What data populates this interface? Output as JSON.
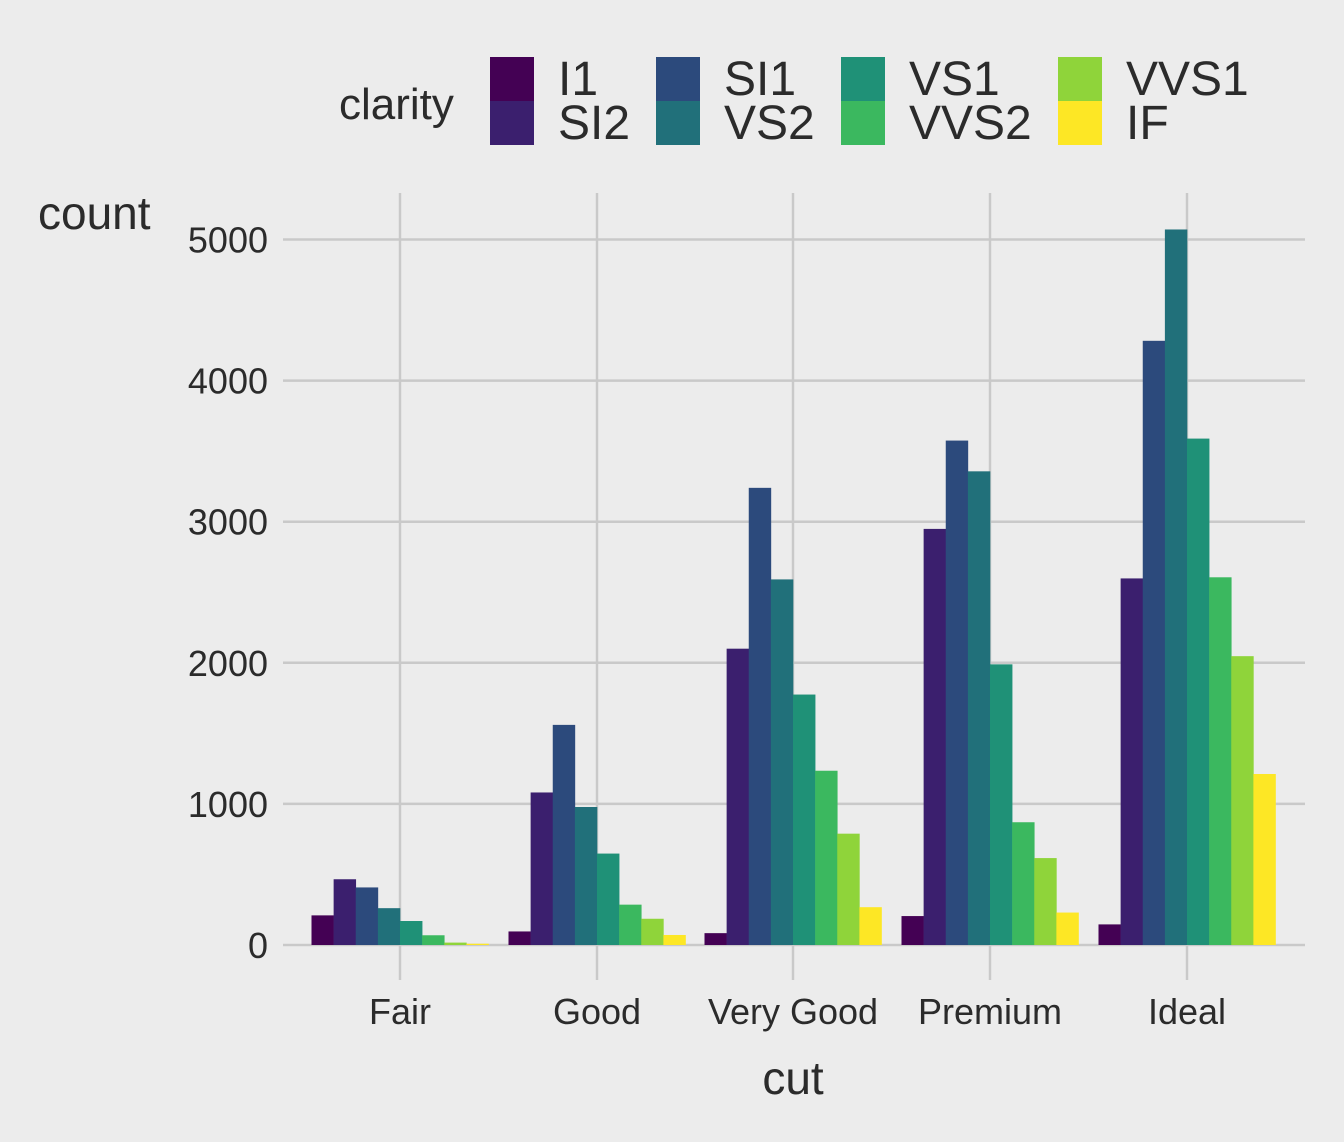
{
  "chart_data": {
    "type": "bar",
    "xlabel": "cut",
    "ylabel": "count",
    "categories": [
      "Fair",
      "Good",
      "Very Good",
      "Premium",
      "Ideal"
    ],
    "ylim": [
      0,
      5250
    ],
    "yticks": [
      "0",
      "1000",
      "2000",
      "3000",
      "4000",
      "5000"
    ],
    "grid": true,
    "legend": {
      "title": "clarity",
      "position": "top"
    },
    "series": [
      {
        "name": "I1",
        "color": "#440154",
        "values": [
          210,
          96,
          84,
          205,
          146
        ]
      },
      {
        "name": "SI2",
        "color": "#3b1f6e",
        "values": [
          466,
          1081,
          2100,
          2949,
          2598
        ]
      },
      {
        "name": "SI1",
        "color": "#2c4a7c",
        "values": [
          408,
          1560,
          3240,
          3575,
          4282
        ]
      },
      {
        "name": "VS2",
        "color": "#21707a",
        "values": [
          261,
          978,
          2591,
          3357,
          5071
        ]
      },
      {
        "name": "VS1",
        "color": "#1f9177",
        "values": [
          170,
          648,
          1775,
          1989,
          3589
        ]
      },
      {
        "name": "VVS2",
        "color": "#3bb85f",
        "values": [
          69,
          286,
          1235,
          870,
          2606
        ]
      },
      {
        "name": "VVS1",
        "color": "#8fd43a",
        "values": [
          17,
          186,
          789,
          616,
          2047
        ]
      },
      {
        "name": "IF",
        "color": "#fde725",
        "values": [
          9,
          71,
          268,
          230,
          1212
        ]
      }
    ]
  }
}
